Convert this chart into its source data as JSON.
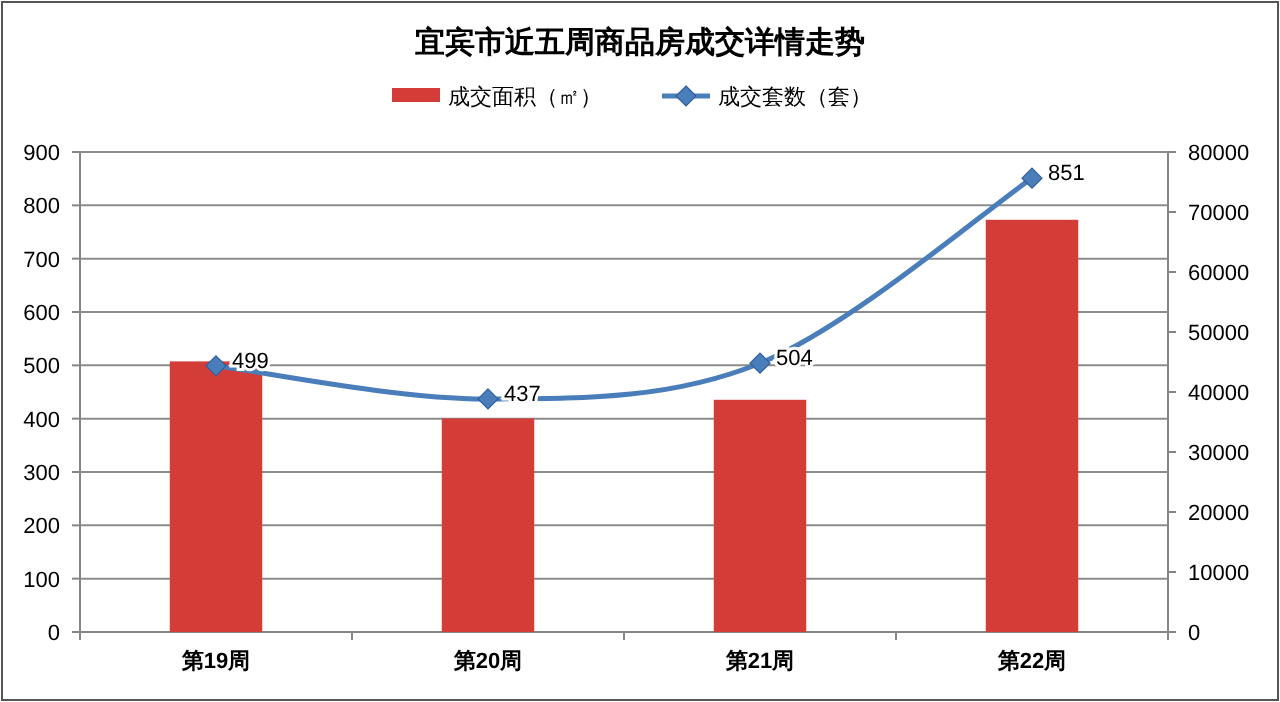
{
  "chart_data": {
    "type": "bar",
    "title": "宜宾市近五周商品房成交详情走势",
    "categories": [
      "第19周",
      "第20周",
      "第21周",
      "第22周"
    ],
    "series": [
      {
        "name": "成交面积（㎡）",
        "axis": "y2",
        "color": "#d33c37",
        "values": [
          45100,
          35600,
          38700,
          68700
        ]
      },
      {
        "name": "成交套数（套）",
        "type": "line",
        "axis": "y",
        "color": "#4a7ebb",
        "values": [
          499,
          437,
          504,
          851
        ],
        "value_labels": [
          "499",
          "437",
          "504",
          "851"
        ]
      }
    ],
    "ylim": [
      0,
      900
    ],
    "yticks": [
      0,
      100,
      200,
      300,
      400,
      500,
      600,
      700,
      800,
      900
    ],
    "y2lim": [
      0,
      80000
    ],
    "y2ticks": [
      0,
      10000,
      20000,
      30000,
      40000,
      50000,
      60000,
      70000,
      80000
    ],
    "grid": "y",
    "legend": "top",
    "marker": "diamond",
    "line_style": "solid"
  }
}
